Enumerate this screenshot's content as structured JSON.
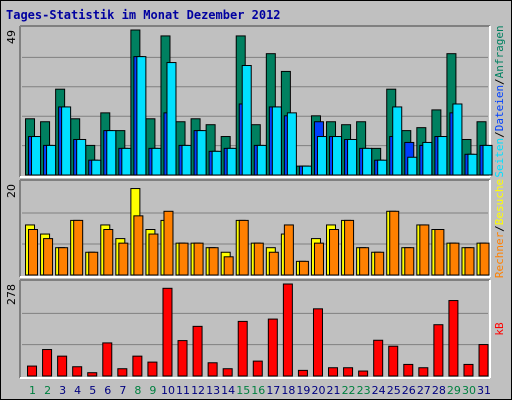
{
  "title": "Tages-Statistik im Monat Dezember 2012",
  "chart_data": [
    {
      "type": "bar",
      "panel": "top",
      "max_label": "49",
      "ylim": [
        0,
        49
      ],
      "right_label": [
        "Anfragen",
        "Dateien",
        "Seiten"
      ],
      "right_label_sep": "/",
      "colors": {
        "Anfragen": "#008060",
        "Dateien": "#0040ff",
        "Seiten": "#00e0ff"
      },
      "categories": [
        "1",
        "2",
        "3",
        "4",
        "5",
        "6",
        "7",
        "8",
        "9",
        "10",
        "11",
        "12",
        "13",
        "14",
        "15",
        "16",
        "17",
        "18",
        "19",
        "20",
        "21",
        "22",
        "23",
        "24",
        "25",
        "26",
        "27",
        "28",
        "29",
        "30",
        "31"
      ],
      "series": [
        {
          "name": "Anfragen",
          "values": [
            19,
            18,
            29,
            19,
            10,
            21,
            15,
            49,
            19,
            47,
            18,
            19,
            17,
            13,
            47,
            17,
            41,
            35,
            3,
            20,
            18,
            17,
            18,
            9,
            29,
            15,
            16,
            22,
            41,
            12,
            18
          ]
        },
        {
          "name": "Dateien",
          "values": [
            13,
            10,
            23,
            12,
            5,
            15,
            9,
            40,
            9,
            21,
            10,
            15,
            8,
            9,
            24,
            10,
            23,
            20,
            3,
            18,
            13,
            12,
            9,
            5,
            13,
            11,
            10,
            13,
            21,
            7,
            10
          ]
        },
        {
          "name": "Seiten",
          "values": [
            13,
            10,
            23,
            12,
            5,
            15,
            9,
            40,
            9,
            38,
            10,
            15,
            8,
            9,
            37,
            10,
            23,
            21,
            3,
            13,
            13,
            12,
            9,
            5,
            23,
            6,
            11,
            13,
            24,
            7,
            10
          ]
        }
      ]
    },
    {
      "type": "bar",
      "panel": "middle",
      "max_label": "20",
      "ylim": [
        0,
        20
      ],
      "right_label": [
        "Besuche",
        "Rechner"
      ],
      "right_label_sep": "/",
      "colors": {
        "Besuche": "#ffff00",
        "Rechner": "#ff8000"
      },
      "categories": [
        "1",
        "2",
        "3",
        "4",
        "5",
        "6",
        "7",
        "8",
        "9",
        "10",
        "11",
        "12",
        "13",
        "14",
        "15",
        "16",
        "17",
        "18",
        "19",
        "20",
        "21",
        "22",
        "23",
        "24",
        "25",
        "26",
        "27",
        "28",
        "29",
        "30",
        "31"
      ],
      "series": [
        {
          "name": "Besuche",
          "values": [
            11,
            9,
            6,
            12,
            5,
            11,
            8,
            19,
            10,
            12,
            7,
            7,
            6,
            5,
            12,
            7,
            6,
            9,
            3,
            8,
            11,
            12,
            6,
            5,
            14,
            6,
            11,
            10,
            7,
            6,
            7
          ]
        },
        {
          "name": "Rechner",
          "values": [
            10,
            8,
            6,
            12,
            5,
            10,
            7,
            13,
            9,
            14,
            7,
            7,
            6,
            4,
            12,
            7,
            5,
            11,
            3,
            7,
            10,
            12,
            6,
            5,
            14,
            6,
            11,
            10,
            7,
            6,
            7
          ]
        }
      ]
    },
    {
      "type": "bar",
      "panel": "bottom",
      "max_label": "278",
      "ylim": [
        0,
        278
      ],
      "right_label": [
        "kB"
      ],
      "right_label_sep": "",
      "colors": {
        "kB": "#ff0000"
      },
      "categories": [
        "1",
        "2",
        "3",
        "4",
        "5",
        "6",
        "7",
        "8",
        "9",
        "10",
        "11",
        "12",
        "13",
        "14",
        "15",
        "16",
        "17",
        "18",
        "19",
        "20",
        "21",
        "22",
        "23",
        "24",
        "25",
        "26",
        "27",
        "28",
        "29",
        "30",
        "31"
      ],
      "weekend": [
        "1",
        "2",
        "8",
        "9",
        "15",
        "16",
        "22",
        "23",
        "29",
        "30"
      ],
      "series": [
        {
          "name": "kB",
          "values": [
            30,
            80,
            60,
            28,
            10,
            100,
            22,
            60,
            42,
            265,
            107,
            150,
            40,
            22,
            165,
            45,
            172,
            278,
            17,
            203,
            25,
            25,
            15,
            108,
            90,
            35,
            25,
            155,
            228,
            35,
            95
          ]
        }
      ]
    }
  ]
}
